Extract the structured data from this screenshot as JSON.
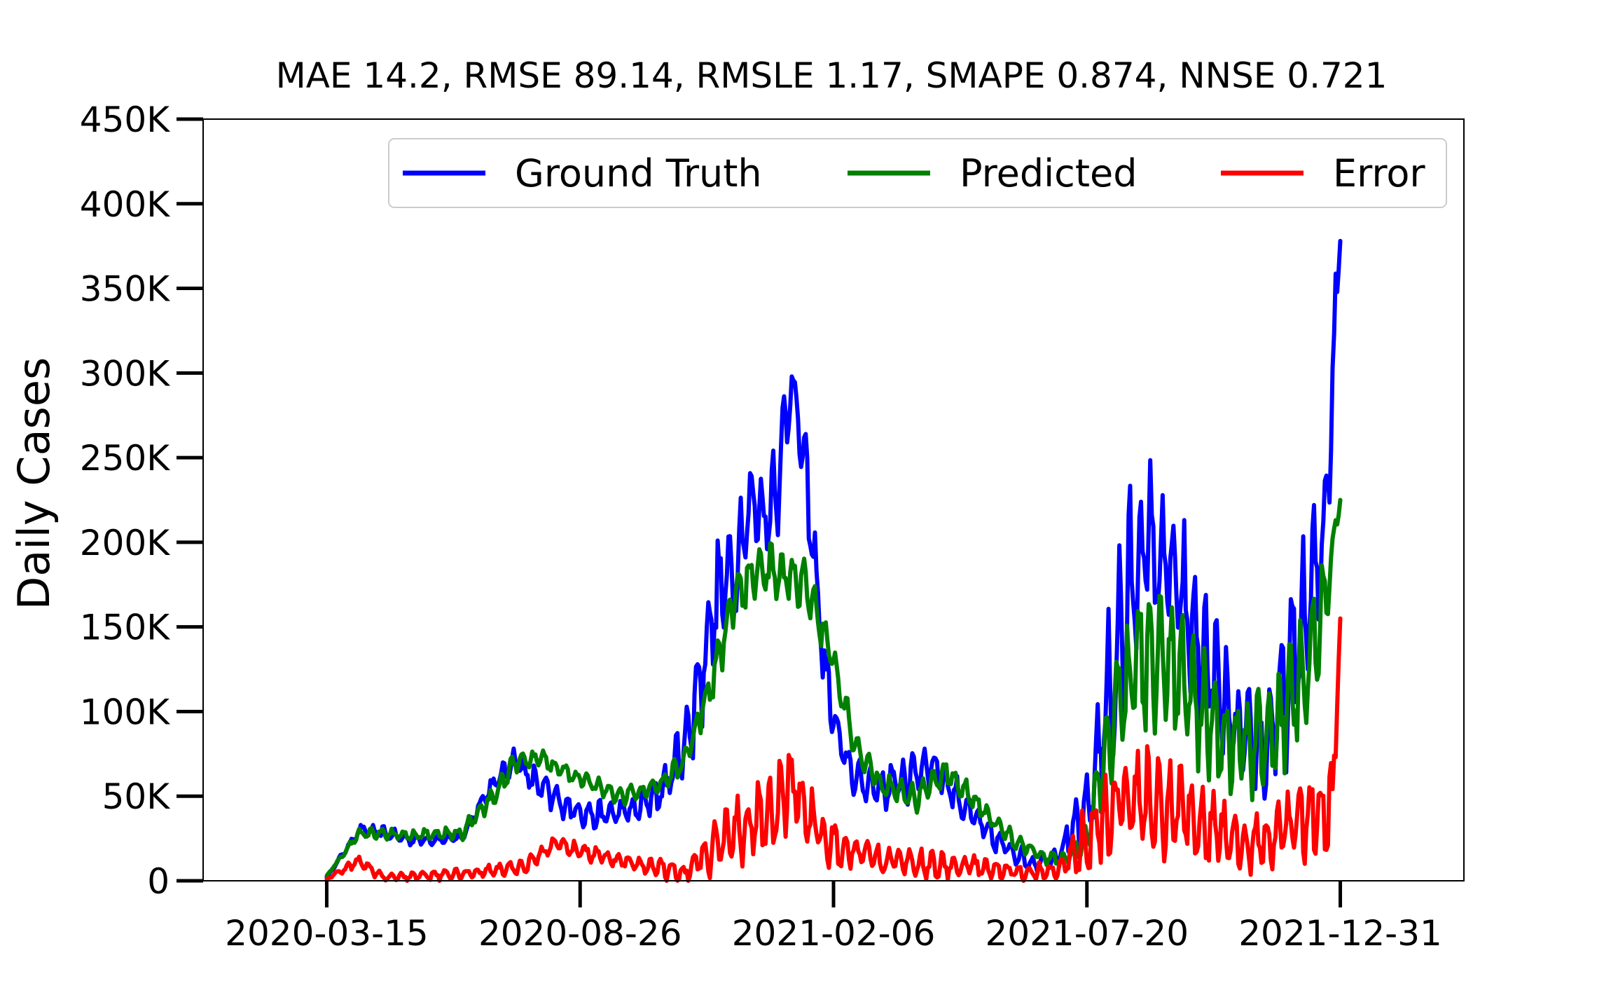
{
  "chart_data": {
    "type": "line",
    "title": "MAE 14.2, RMSE 89.14, RMSLE 1.17, SMAPE 0.874, NNSE 0.721",
    "xlabel": "",
    "ylabel": "Daily Cases",
    "x_start": "2020-03-15",
    "x_end": "2021-12-31",
    "x_ticks": [
      "2020-03-15",
      "2020-08-26",
      "2021-02-06",
      "2021-07-20",
      "2021-12-31"
    ],
    "ylim": [
      0,
      450000
    ],
    "y_ticks": [
      0,
      50000,
      100000,
      150000,
      200000,
      250000,
      300000,
      350000,
      400000,
      450000
    ],
    "y_tick_labels": [
      "0",
      "50K",
      "100K",
      "150K",
      "200K",
      "250K",
      "300K",
      "350K",
      "400K",
      "450K"
    ],
    "grid": false,
    "legend_position": "top",
    "series": [
      {
        "name": "Ground Truth",
        "color": "#0000ff",
        "x": [
          "2020-03-15",
          "2020-04-05",
          "2020-04-20",
          "2020-05-10",
          "2020-06-10",
          "2020-06-25",
          "2020-07-15",
          "2020-07-25",
          "2020-08-15",
          "2020-09-05",
          "2020-10-01",
          "2020-10-20",
          "2020-11-05",
          "2020-11-20",
          "2020-12-05",
          "2020-12-15",
          "2020-12-25",
          "2021-01-05",
          "2021-01-10",
          "2021-01-20",
          "2021-02-01",
          "2021-02-10",
          "2021-02-20",
          "2021-03-10",
          "2021-03-25",
          "2021-04-10",
          "2021-05-01",
          "2021-05-20",
          "2021-06-15",
          "2021-07-01",
          "2021-07-20",
          "2021-08-10",
          "2021-08-25",
          "2021-09-10",
          "2021-09-25",
          "2021-10-10",
          "2021-10-25",
          "2021-11-10",
          "2021-11-25",
          "2021-12-10",
          "2021-12-20",
          "2021-12-26",
          "2021-12-31"
        ],
        "values": [
          2000,
          30000,
          28000,
          24000,
          25000,
          50000,
          72000,
          60000,
          45000,
          38000,
          42000,
          55000,
          90000,
          160000,
          190000,
          225000,
          215000,
          255000,
          300000,
          230000,
          120000,
          80000,
          60000,
          55000,
          60000,
          70000,
          45000,
          25000,
          10000,
          15000,
          40000,
          140000,
          200000,
          185000,
          150000,
          120000,
          85000,
          75000,
          110000,
          160000,
          200000,
          300000,
          378000
        ],
        "band": [
          0,
          3000,
          4000,
          3000,
          3000,
          6000,
          7000,
          10000,
          8000,
          8000,
          8000,
          14000,
          28000,
          35000,
          30000,
          20000,
          25000,
          35000,
          5000,
          25000,
          18000,
          12000,
          10000,
          12000,
          14000,
          12000,
          10000,
          7000,
          5000,
          6000,
          25000,
          55000,
          55000,
          50000,
          45000,
          40000,
          30000,
          30000,
          40000,
          45000,
          35000,
          40000,
          0
        ]
      },
      {
        "name": "Predicted",
        "color": "#008000",
        "x": [
          "2020-03-15",
          "2020-04-05",
          "2020-05-10",
          "2020-06-10",
          "2020-07-01",
          "2020-07-15",
          "2020-08-01",
          "2020-08-26",
          "2020-09-20",
          "2020-10-15",
          "2020-11-01",
          "2020-11-20",
          "2020-12-05",
          "2020-12-20",
          "2021-01-05",
          "2021-01-20",
          "2021-02-06",
          "2021-02-20",
          "2021-03-10",
          "2021-04-01",
          "2021-04-20",
          "2021-05-10",
          "2021-06-01",
          "2021-06-20",
          "2021-07-05",
          "2021-07-20",
          "2021-08-05",
          "2021-08-20",
          "2021-09-10",
          "2021-09-25",
          "2021-10-15",
          "2021-11-01",
          "2021-11-20",
          "2021-12-05",
          "2021-12-20",
          "2021-12-31"
        ],
        "values": [
          3000,
          28000,
          27000,
          28000,
          50000,
          70000,
          72000,
          60000,
          50000,
          55000,
          70000,
          120000,
          170000,
          185000,
          180000,
          175000,
          130000,
          80000,
          55000,
          50000,
          65000,
          45000,
          25000,
          15000,
          12000,
          25000,
          90000,
          130000,
          125000,
          110000,
          85000,
          80000,
          90000,
          120000,
          160000,
          225000
        ],
        "band": [
          0,
          3000,
          3000,
          4000,
          5000,
          6000,
          5000,
          5000,
          5000,
          5000,
          7000,
          12000,
          15000,
          15000,
          15000,
          15000,
          10000,
          8000,
          8000,
          8000,
          8000,
          6000,
          5000,
          4000,
          4000,
          8000,
          35000,
          40000,
          40000,
          35000,
          30000,
          28000,
          30000,
          35000,
          30000,
          0
        ]
      },
      {
        "name": "Error",
        "color": "#ff0000",
        "x": [
          "2020-03-15",
          "2020-04-05",
          "2020-04-20",
          "2020-05-20",
          "2020-06-20",
          "2020-07-20",
          "2020-08-10",
          "2020-09-05",
          "2020-10-01",
          "2020-10-15",
          "2020-11-01",
          "2020-11-20",
          "2020-12-10",
          "2020-12-28",
          "2021-01-10",
          "2021-01-20",
          "2021-02-10",
          "2021-03-10",
          "2021-04-10",
          "2021-05-10",
          "2021-06-10",
          "2021-07-01",
          "2021-07-20",
          "2021-08-10",
          "2021-09-01",
          "2021-09-20",
          "2021-10-10",
          "2021-11-01",
          "2021-11-25",
          "2021-12-15",
          "2021-12-26",
          "2021-12-31"
        ],
        "values": [
          1000,
          12000,
          2000,
          3000,
          5000,
          8000,
          22000,
          15000,
          10000,
          8000,
          5000,
          20000,
          30000,
          40000,
          60000,
          35000,
          20000,
          12000,
          10000,
          8000,
          5000,
          6000,
          25000,
          45000,
          45000,
          40000,
          30000,
          20000,
          30000,
          40000,
          45000,
          155000
        ],
        "band": [
          0,
          4000,
          2000,
          3000,
          3000,
          4000,
          4000,
          5000,
          4000,
          6000,
          5000,
          15000,
          20000,
          20000,
          30000,
          20000,
          12000,
          8000,
          8000,
          6000,
          5000,
          5000,
          20000,
          30000,
          30000,
          25000,
          20000,
          15000,
          20000,
          25000,
          30000,
          0
        ]
      }
    ]
  }
}
